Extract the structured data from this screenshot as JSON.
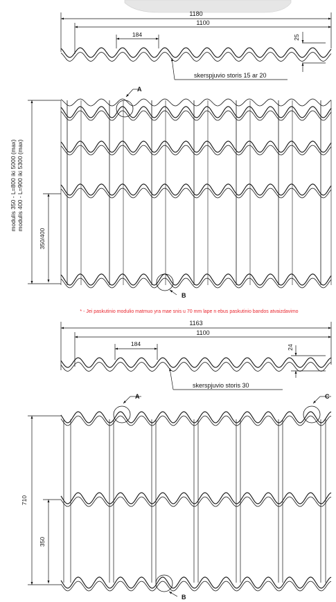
{
  "colors": {
    "ink": "#111111",
    "note": "#e8262e",
    "background": "#ffffff"
  },
  "profile1": {
    "overall_width": "1180",
    "effective_width": "1100",
    "pitch": "184",
    "depth": "25",
    "note": "skerspjuvio storis 15 ar 20"
  },
  "sheet1": {
    "detail_a": "A",
    "detail_b": "B",
    "length_label_1": "modulis 350 - L=800  iki  5000 (max)",
    "length_label_2": "modulis 400 - L=900  iki  5300 (max)",
    "module_label": "350/400"
  },
  "footnote": "* - Jei paskutinio modulio matmuo yra mae  snis u  70 mm lape n ebus paskutinio bandos atvaizdavimo",
  "profile2": {
    "overall_width": "1163",
    "effective_width": "1100",
    "pitch": "184",
    "depth": "24",
    "note": "skerspjuvio storis 30"
  },
  "sheet2": {
    "detail_a": "A",
    "detail_b": "B",
    "detail_c": "C",
    "height_label": "710",
    "module_label": "350"
  }
}
